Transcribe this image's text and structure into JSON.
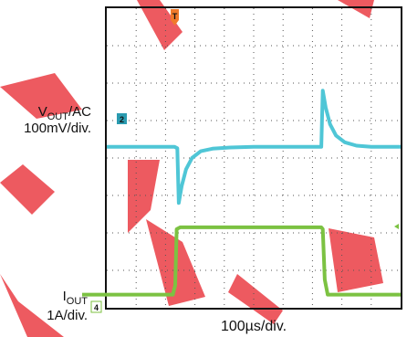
{
  "chart_data": {
    "type": "line",
    "title": "",
    "xlabel": "100µs/div.",
    "grid": true,
    "divisions": {
      "x": 10,
      "y": 8
    },
    "series": [
      {
        "name": "VOUT/AC",
        "ylabel_main": "V",
        "ylabel_sub": "OUT",
        "ylabel_suffix": "/AC",
        "scale": "100mV/div.",
        "channel": "2",
        "color": "#4fc6d6",
        "x": [
          0,
          2.3,
          2.4,
          2.45,
          2.55,
          2.7,
          2.9,
          3.2,
          3.6,
          4.2,
          5.0,
          6.0,
          7.0,
          7.3,
          7.35,
          7.45,
          7.6,
          7.8,
          8.1,
          8.5,
          9.0,
          10
        ],
        "y": [
          0,
          0,
          -0.04,
          -1.5,
          -1.05,
          -0.6,
          -0.3,
          -0.12,
          -0.05,
          -0.02,
          0,
          0,
          0,
          0,
          1.5,
          1.05,
          0.6,
          0.3,
          0.12,
          0.03,
          0,
          0
        ]
      },
      {
        "name": "IOUT",
        "ylabel_main": "I",
        "ylabel_sub": "OUT",
        "ylabel_suffix": "",
        "scale": "1A/div.",
        "channel": "4",
        "color": "#7cc242",
        "x": [
          0,
          2.25,
          2.33,
          2.38,
          2.5,
          7.3,
          7.35,
          7.42,
          7.52,
          10
        ],
        "y": [
          0.6,
          0.6,
          0.85,
          2.35,
          2.4,
          2.4,
          2.35,
          1.0,
          0.6,
          0.6
        ]
      }
    ],
    "trigger_marker": "T"
  }
}
